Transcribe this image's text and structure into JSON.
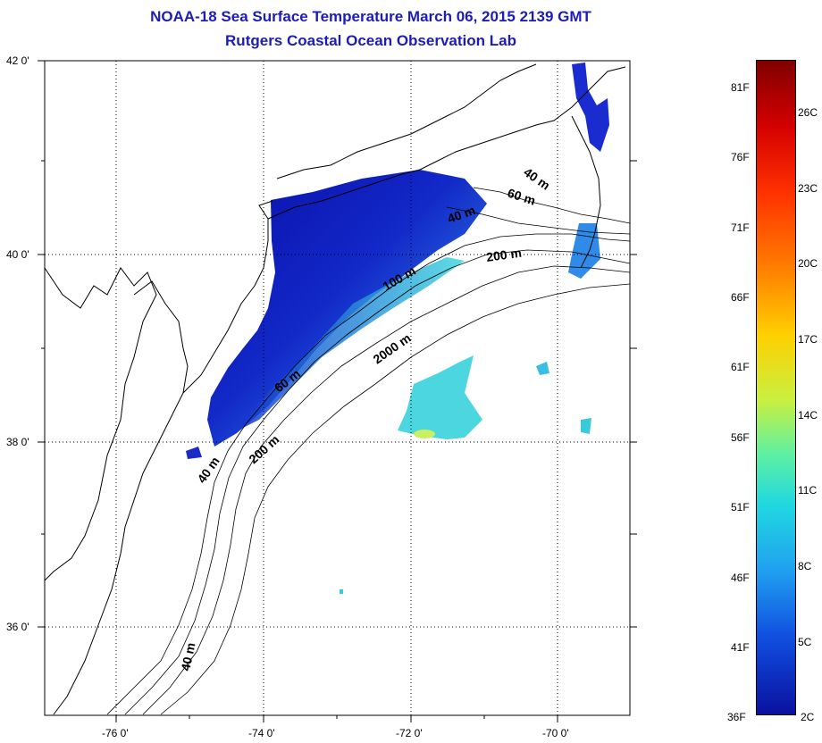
{
  "header": {
    "title": "NOAA-18 Sea Surface Temperature March 06, 2015 2139 GMT",
    "subtitle": "Rutgers Coastal Ocean Observation Lab"
  },
  "map": {
    "lat_range": [
      35,
      42
    ],
    "lon_range": [
      -77,
      -69
    ],
    "lat_ticks": [
      {
        "value": 42,
        "label": "42 0'"
      },
      {
        "value": 40,
        "label": "40 0'"
      },
      {
        "value": 38,
        "label": "38 0'"
      },
      {
        "value": 36,
        "label": "36 0'"
      }
    ],
    "lon_ticks": [
      {
        "value": -76,
        "label": "-76 0'"
      },
      {
        "value": -74,
        "label": "-74 0'"
      },
      {
        "value": -72,
        "label": "-72 0'"
      },
      {
        "value": -70,
        "label": "-70 0'"
      }
    ],
    "contour_labels": [
      "40 m",
      "60 m",
      "40 m",
      "200 m",
      "100 m",
      "2000 m",
      "60 m",
      "200 m",
      "40 m",
      "40 m"
    ],
    "grid": "dotted",
    "colors": {
      "land": "#ffffff",
      "coastline": "#000000",
      "sst_cold": "#0a14b4",
      "sst_warm": "#40e0d0"
    }
  },
  "colorbar": {
    "min_c": 2,
    "max_c": 29,
    "fahrenheit_labels": [
      "81F",
      "76F",
      "71F",
      "66F",
      "61F",
      "56F",
      "51F",
      "46F",
      "41F",
      "36F"
    ],
    "celsius_labels": [
      "26C",
      "23C",
      "20C",
      "17C",
      "14C",
      "11C",
      "8C",
      "5C",
      "2C"
    ]
  }
}
